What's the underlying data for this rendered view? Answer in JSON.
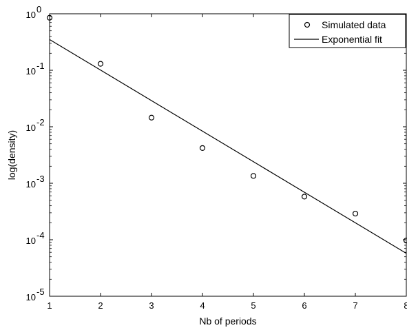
{
  "chart_data": {
    "type": "scatter",
    "xlabel": "Nb of periods",
    "ylabel": "log(density)",
    "xlim": [
      1,
      8
    ],
    "ylim": [
      1e-05,
      1
    ],
    "yscale": "log",
    "xticks": [
      "1",
      "2",
      "3",
      "4",
      "5",
      "6",
      "7",
      "8"
    ],
    "yticks": [
      {
        "base": "10",
        "exp": "-5",
        "value": 1e-05
      },
      {
        "base": "10",
        "exp": "-4",
        "value": 0.0001
      },
      {
        "base": "10",
        "exp": "-3",
        "value": 0.001
      },
      {
        "base": "10",
        "exp": "-2",
        "value": 0.01
      },
      {
        "base": "10",
        "exp": "-1",
        "value": 0.1
      },
      {
        "base": "10",
        "exp": "0",
        "value": 1
      }
    ],
    "grid": false,
    "legend_position": "top-right",
    "series": [
      {
        "name": "Simulated data",
        "kind": "markers",
        "marker": "open-circle",
        "x": [
          1,
          2,
          3,
          4,
          5,
          6,
          7,
          8
        ],
        "y": [
          0.85,
          0.13,
          0.0145,
          0.0042,
          0.00135,
          0.00058,
          0.00029,
          9.7e-05
        ]
      },
      {
        "name": "Exponential fit",
        "kind": "line",
        "x": [
          1,
          8
        ],
        "y": [
          0.35,
          5.75e-05
        ]
      }
    ],
    "colors": {
      "line": "#000000",
      "marker": "#000000",
      "background": "#ffffff"
    }
  }
}
